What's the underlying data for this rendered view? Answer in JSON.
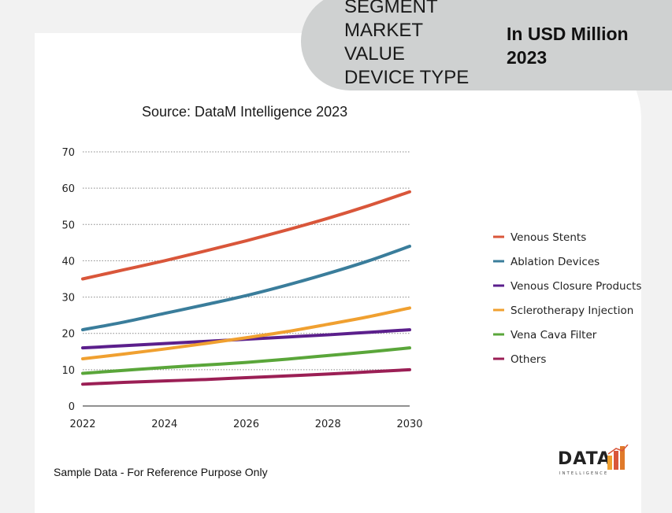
{
  "header": {
    "segment_lines": [
      "SEGMENT",
      "MARKET",
      "VALUE",
      "DEVICE TYPE"
    ],
    "unit_lines": [
      "In USD Million",
      "2023"
    ]
  },
  "source_text": "Source: DataM Intelligence 2023",
  "footnote": "Sample Data - For Reference Purpose Only",
  "logo": {
    "main": "DATA",
    "sub": "INTELLIGENCE"
  },
  "chart_data": {
    "type": "line",
    "title": "",
    "xlabel": "",
    "ylabel": "",
    "x": [
      2022,
      2023,
      2024,
      2025,
      2026,
      2027,
      2028,
      2029,
      2030
    ],
    "x_ticks": [
      2022,
      2024,
      2026,
      2028,
      2030
    ],
    "y_ticks": [
      0,
      10,
      20,
      30,
      40,
      50,
      60,
      70
    ],
    "xlim": [
      2022,
      2030
    ],
    "ylim": [
      0,
      70
    ],
    "grid": "horizontal dotted",
    "legend_position": "right",
    "series": [
      {
        "name": "Venous Stents",
        "color": "#d9563a",
        "values": [
          35,
          37.5,
          40,
          42.7,
          45.5,
          48.5,
          51.7,
          55.2,
          59
        ]
      },
      {
        "name": "Ablation Devices",
        "color": "#3a7d9b",
        "values": [
          21,
          23.1,
          25.5,
          27.9,
          30.4,
          33.3,
          36.5,
          40,
          44
        ]
      },
      {
        "name": "Venous Closure Products",
        "color": "#5b1f8c",
        "values": [
          16,
          16.6,
          17.2,
          17.8,
          18.4,
          19,
          19.6,
          20.3,
          21
        ]
      },
      {
        "name": "Sclerotherapy Injection",
        "color": "#f0a030",
        "values": [
          13,
          14.3,
          15.7,
          17.2,
          18.8,
          20.5,
          22.5,
          24.6,
          27
        ]
      },
      {
        "name": "Vena Cava Filter",
        "color": "#5aa63a",
        "values": [
          9,
          9.8,
          10.6,
          11.3,
          12,
          12.9,
          13.9,
          14.9,
          16
        ]
      },
      {
        "name": "Others",
        "color": "#9b1f55",
        "values": [
          6,
          6.5,
          6.9,
          7.3,
          7.8,
          8.3,
          8.8,
          9.4,
          10
        ]
      }
    ]
  }
}
